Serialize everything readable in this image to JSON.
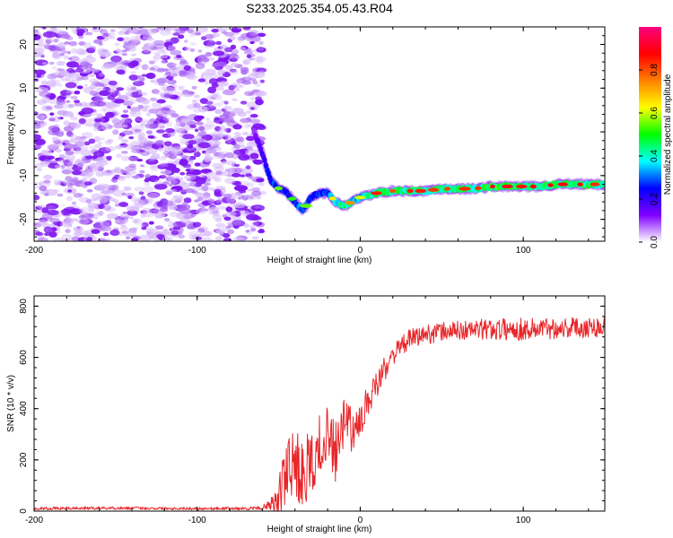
{
  "title": "S233.2025.354.05.43.R04",
  "chart_data": [
    {
      "type": "heatmap",
      "title": "S233.2025.354.05.43.R04",
      "xlabel": "Height of straight line (km)",
      "ylabel": "Frequency (Hz)",
      "xlim": [
        -200,
        150
      ],
      "ylim": [
        -25,
        24
      ],
      "xticks": [
        -200,
        -100,
        0,
        100
      ],
      "yticks": [
        -20,
        -10,
        0,
        10,
        20
      ],
      "noise_region_x": [
        -200,
        -62
      ],
      "colorbar": {
        "label": "Normalized spectral amplitude",
        "range": [
          0,
          1
        ],
        "ticks": [
          "0.0",
          "0.2",
          "0.4",
          "0.6",
          "0.8"
        ],
        "colors": [
          "#ffffff",
          "#8000ff",
          "#0000ff",
          "#00ffff",
          "#00ff00",
          "#ffff00",
          "#ff8000",
          "#ff0000",
          "#ff0080"
        ]
      },
      "signal_track": {
        "x": [
          -65,
          -60,
          -55,
          -50,
          -45,
          -40,
          -35,
          -30,
          -25,
          -20,
          -15,
          -10,
          -5,
          0,
          5,
          10,
          20,
          30,
          40,
          50,
          60,
          70,
          80,
          90,
          100,
          110,
          120,
          130,
          140,
          150
        ],
        "y": [
          0,
          -5,
          -11,
          -13,
          -14,
          -16,
          -18,
          -15,
          -14,
          -14,
          -16,
          -17,
          -16,
          -15,
          -14.5,
          -14,
          -13.5,
          -13.5,
          -13.5,
          -13,
          -13,
          -13,
          -12.5,
          -12.5,
          -12.5,
          -12.5,
          -12,
          -12,
          -12,
          -12
        ],
        "amplitude": [
          0.2,
          0.35,
          0.5,
          0.55,
          0.45,
          0.55,
          0.6,
          0.45,
          0.5,
          0.55,
          0.7,
          0.85,
          0.7,
          0.6,
          0.75,
          0.85,
          0.8,
          0.85,
          0.85,
          0.8,
          0.85,
          0.8,
          0.9,
          0.9,
          0.85,
          0.9,
          0.85,
          0.9,
          0.85,
          0.8
        ]
      }
    },
    {
      "type": "line",
      "xlabel": "Height of straight line (km)",
      "ylabel": "SNR (10 * v/v)",
      "xlim": [
        -200,
        150
      ],
      "ylim": [
        0,
        840
      ],
      "xticks": [
        -200,
        -100,
        0,
        100
      ],
      "yticks": [
        0,
        200,
        400,
        600,
        800
      ],
      "color": "#e8262a",
      "x": [
        -200,
        -150,
        -100,
        -70,
        -60,
        -55,
        -50,
        -45,
        -40,
        -35,
        -30,
        -25,
        -20,
        -15,
        -10,
        -5,
        0,
        5,
        10,
        15,
        20,
        25,
        30,
        40,
        50,
        60,
        80,
        100,
        120,
        150
      ],
      "y": [
        10,
        12,
        10,
        10,
        12,
        20,
        40,
        110,
        160,
        110,
        170,
        240,
        290,
        200,
        320,
        290,
        340,
        420,
        470,
        550,
        610,
        640,
        670,
        690,
        700,
        705,
        710,
        710,
        715,
        720
      ],
      "spread": [
        8,
        8,
        8,
        8,
        10,
        30,
        90,
        180,
        160,
        190,
        170,
        160,
        140,
        150,
        120,
        110,
        90,
        80,
        70,
        60,
        55,
        55,
        55,
        55,
        55,
        55,
        60,
        65,
        60,
        60
      ]
    }
  ]
}
